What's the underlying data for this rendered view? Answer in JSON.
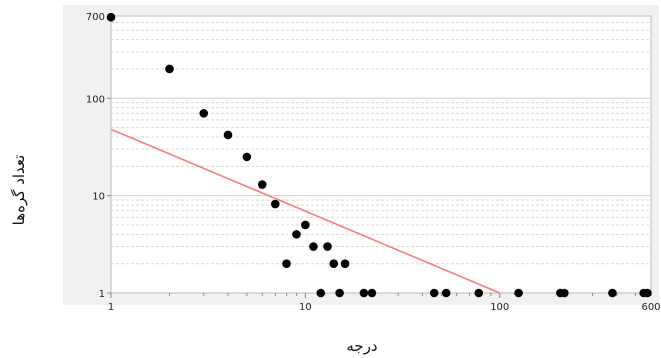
{
  "chart_data": {
    "type": "scatter",
    "title": "",
    "xlabel": "درجه",
    "ylabel": "تعداد گره‌ها",
    "x_scale": "log",
    "y_scale": "log",
    "xlim": [
      1,
      600
    ],
    "ylim": [
      1,
      700
    ],
    "x_ticks": [
      1,
      10,
      100,
      600
    ],
    "x_tick_labels": [
      "1",
      "10",
      "100",
      "600"
    ],
    "y_ticks": [
      1,
      10,
      100,
      700
    ],
    "y_tick_labels": [
      "1",
      "10",
      "100",
      "700"
    ],
    "grid": true,
    "legend": "none",
    "series": [
      {
        "marker": "circle",
        "color": "#000000",
        "points": [
          [
            1,
            680
          ],
          [
            2,
            200
          ],
          [
            3,
            70
          ],
          [
            4,
            42
          ],
          [
            5,
            25
          ],
          [
            6,
            13
          ],
          [
            7,
            8.2
          ],
          [
            8,
            2
          ],
          [
            9,
            4
          ],
          [
            10,
            5
          ],
          [
            11,
            3
          ],
          [
            12,
            1
          ],
          [
            13,
            3
          ],
          [
            14,
            2
          ],
          [
            15,
            1
          ],
          [
            16,
            2
          ],
          [
            20,
            1
          ],
          [
            22,
            1
          ],
          [
            46,
            1
          ],
          [
            53,
            1
          ],
          [
            78,
            1
          ],
          [
            125,
            1
          ],
          [
            205,
            1
          ],
          [
            215,
            1
          ],
          [
            380,
            1
          ],
          [
            550,
            1
          ],
          [
            575,
            1
          ]
        ]
      },
      {
        "line": "fit",
        "color": "#f08080",
        "points": [
          [
            1,
            48
          ],
          [
            100,
            1
          ]
        ]
      }
    ]
  }
}
